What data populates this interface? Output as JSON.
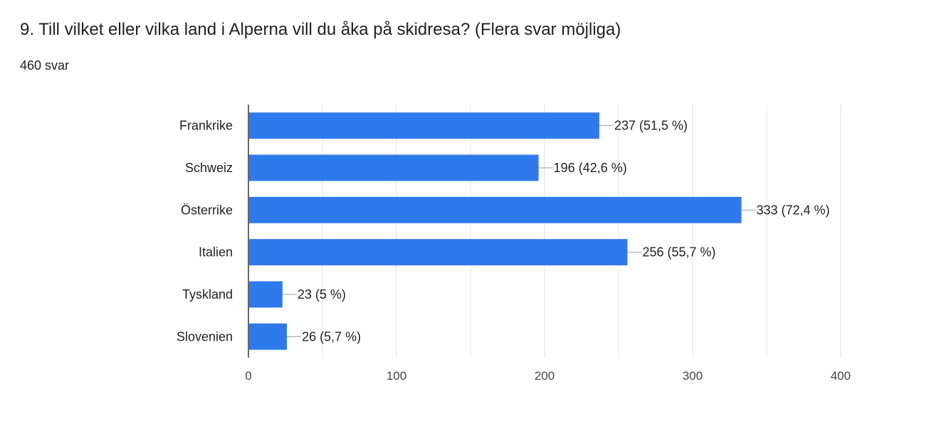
{
  "question": {
    "title": "9. Till vilket eller vilka land i Alperna vill du åka på skidresa? (Flera svar möjliga)",
    "response_count": "460 svar"
  },
  "colors": {
    "bar": "#2f7aea",
    "grid": "#e6e6e6",
    "axis": "#333333",
    "text": "#202124",
    "leader": "#9e9e9e"
  },
  "chart_data": {
    "type": "bar",
    "orientation": "horizontal",
    "title": "",
    "xlabel": "",
    "ylabel": "",
    "categories": [
      "Frankrike",
      "Schweiz",
      "Österrike",
      "Italien",
      "Tyskland",
      "Slovenien"
    ],
    "values": [
      237,
      196,
      333,
      256,
      23,
      26
    ],
    "data_labels": [
      "237 (51,5 %)",
      "196 (42,6 %)",
      "333 (72,4 %)",
      "256 (55,7 %)",
      "23 (5 %)",
      "26 (5,7 %)"
    ],
    "xlim": [
      0,
      400
    ],
    "major_ticks": [
      0,
      100,
      200,
      300,
      400
    ],
    "tick_labels": [
      "0",
      "100",
      "200",
      "300",
      "400"
    ],
    "minor_gridlines": [
      50,
      150,
      250,
      350
    ],
    "grid": true,
    "legend": "none"
  }
}
